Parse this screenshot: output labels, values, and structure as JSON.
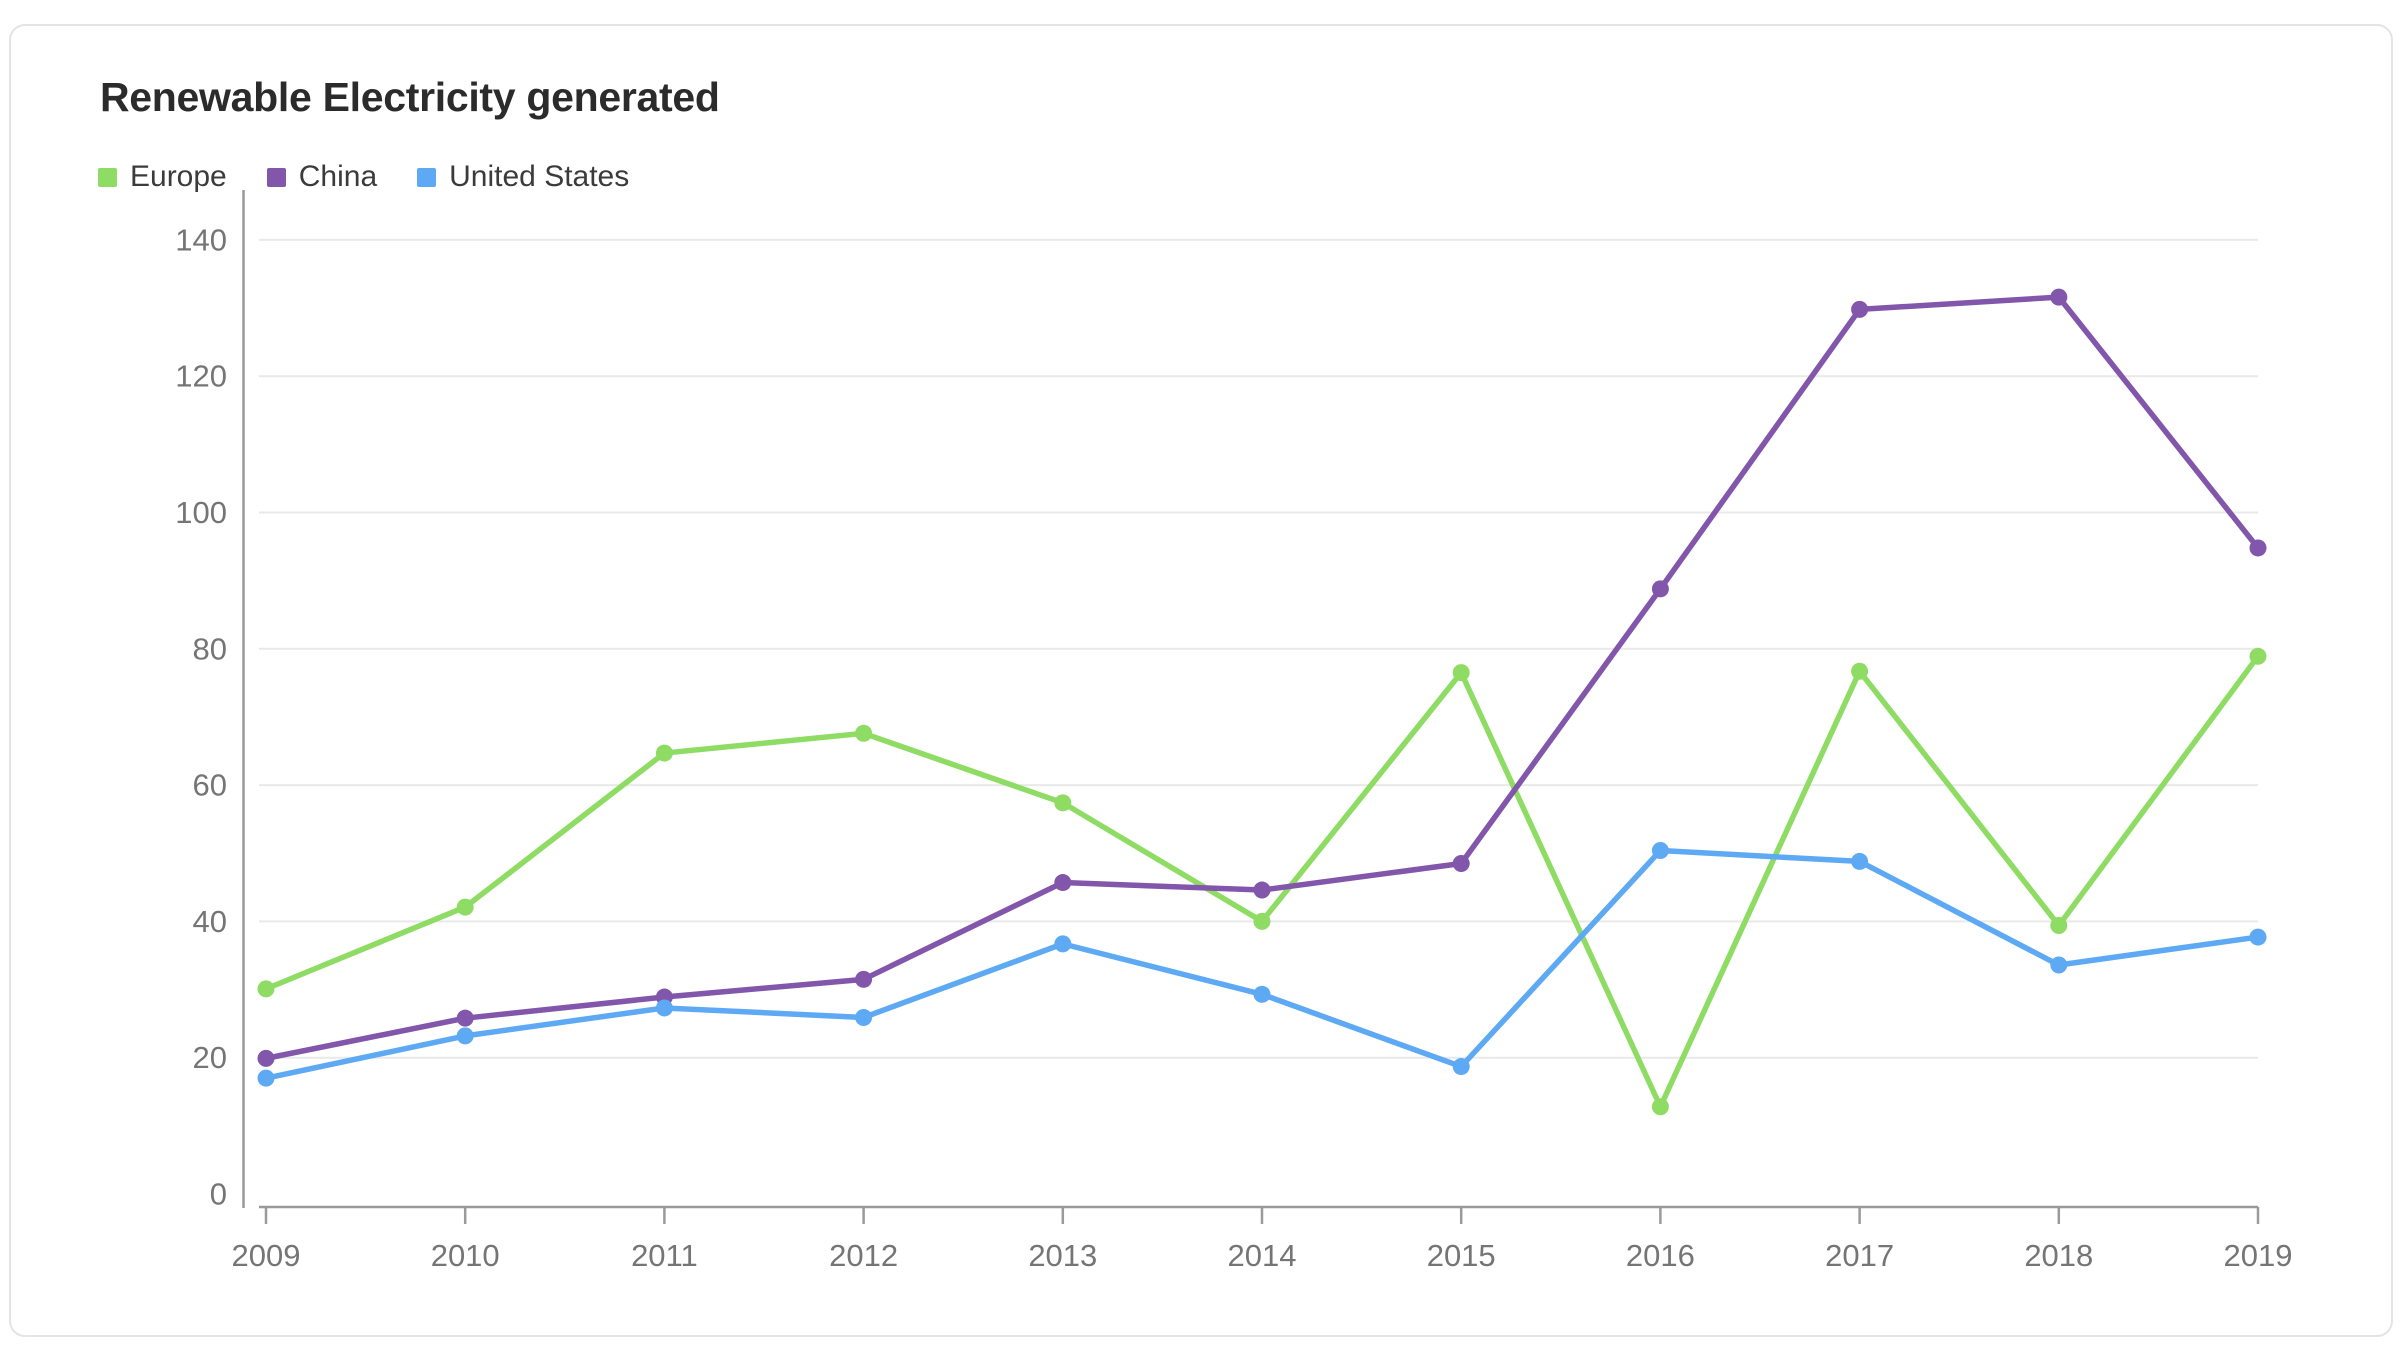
{
  "page": {
    "background": "#ffffff"
  },
  "card": {
    "background": "#ffffff",
    "border_color": "#e4e4e4"
  },
  "chart_data": {
    "type": "line",
    "title": "Renewable Electricity generated",
    "categories": [
      "2009",
      "2010",
      "2011",
      "2012",
      "2013",
      "2014",
      "2015",
      "2016",
      "2017",
      "2018",
      "2019"
    ],
    "series": [
      {
        "name": "Europe",
        "color": "#8edc64",
        "values": [
          30.1,
          42.1,
          64.7,
          67.6,
          57.4,
          40.0,
          76.5,
          12.8,
          76.7,
          39.4,
          78.9
        ]
      },
      {
        "name": "China",
        "color": "#8156ab",
        "values": [
          19.9,
          25.8,
          28.9,
          31.5,
          45.7,
          44.6,
          48.5,
          88.8,
          129.8,
          131.6,
          94.8
        ]
      },
      {
        "name": "United States",
        "color": "#5ea9f3",
        "values": [
          17.0,
          23.2,
          27.3,
          25.9,
          36.7,
          29.3,
          18.7,
          50.4,
          48.8,
          33.6,
          37.7
        ]
      }
    ],
    "xlabel": "",
    "ylabel": "",
    "ylim": [
      0,
      147
    ],
    "yticks": [
      0,
      20,
      40,
      60,
      80,
      100,
      120,
      140
    ],
    "legend_position": "top-left",
    "grid": "horizontal",
    "gridline_color": "#e9e9e9",
    "axis_color": "#9a9a9a",
    "tick_label_color": "#757575",
    "title_color": "#2b2b2b",
    "legend_text_color": "#3b3b3b"
  }
}
